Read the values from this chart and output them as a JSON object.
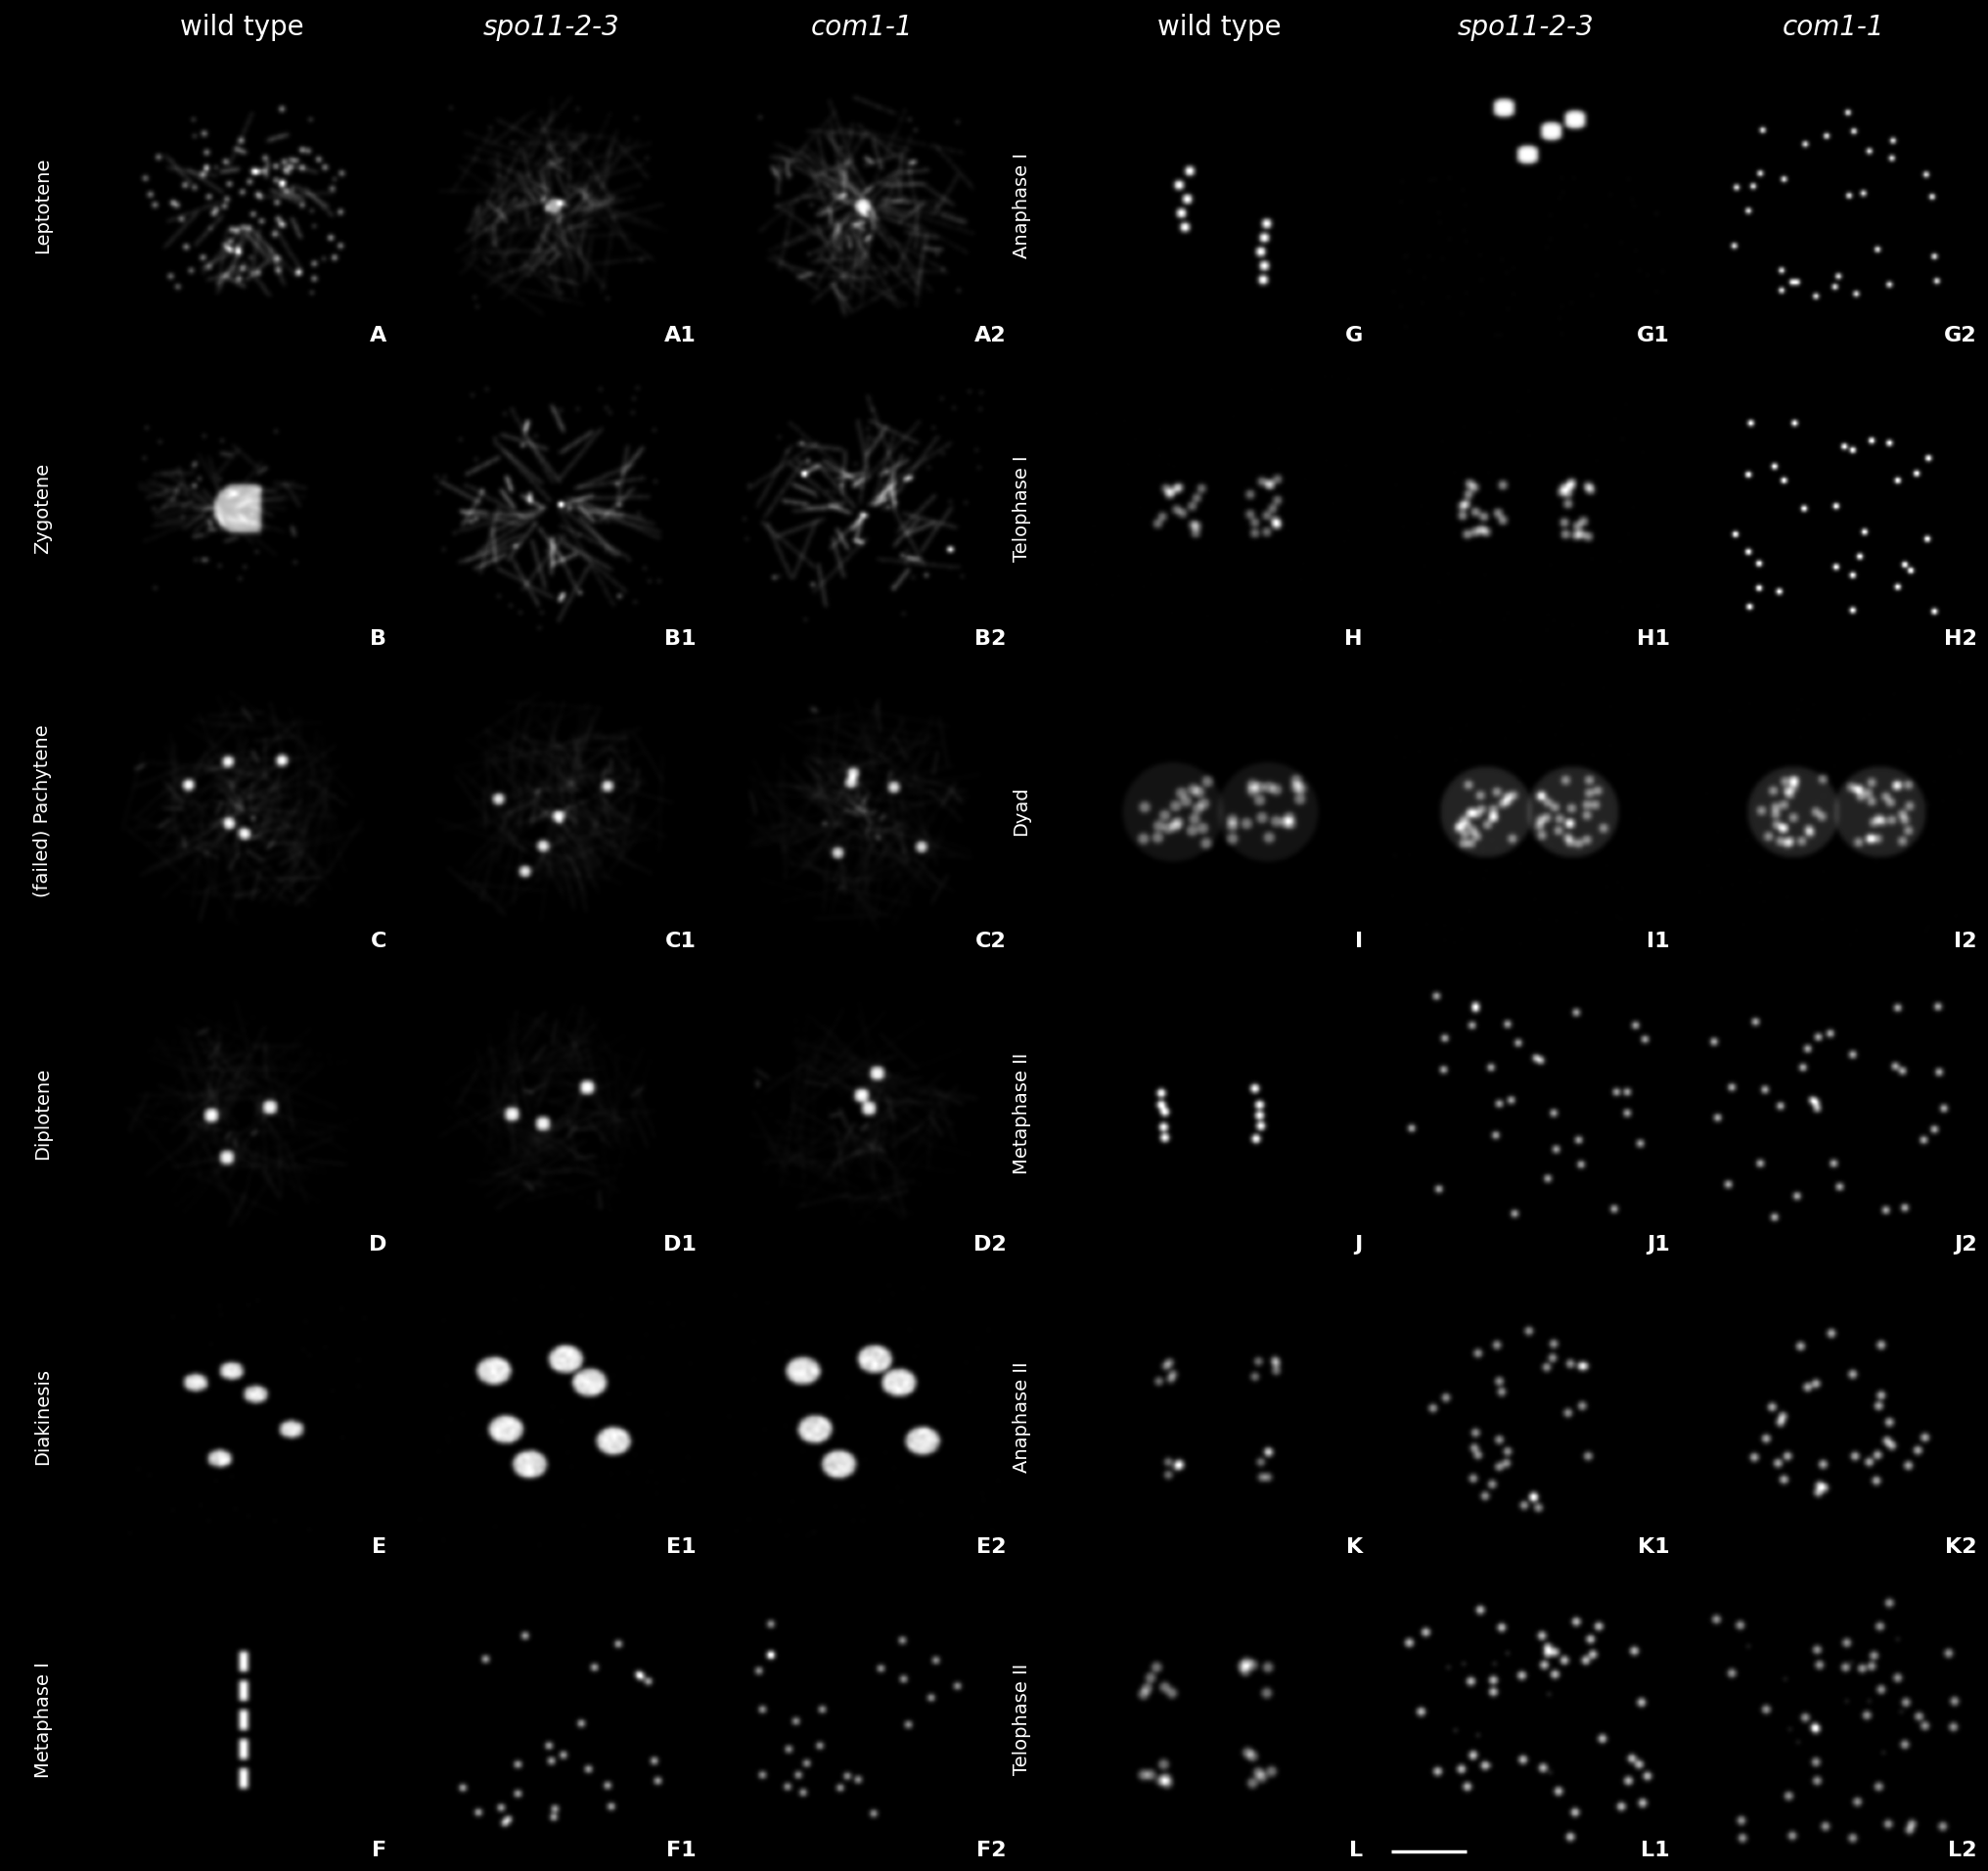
{
  "background": "#000000",
  "text_color": "#ffffff",
  "border_color": "#ffffff",
  "fig_width": 20.32,
  "fig_height": 19.12,
  "left_panel": {
    "col_labels": [
      "wild type",
      "spo11-2-3",
      "com1-1"
    ],
    "col_labels_italic": [
      false,
      true,
      true
    ],
    "row_labels": [
      "Leptotene",
      "Zygotene",
      "(failed) Pachytene",
      "Diplotene",
      "Diakinesis",
      "Metaphase I"
    ],
    "cell_labels": [
      [
        "A",
        "A1",
        "A2"
      ],
      [
        "B",
        "B1",
        "B2"
      ],
      [
        "C",
        "C1",
        "C2"
      ],
      [
        "D",
        "D1",
        "D2"
      ],
      [
        "E",
        "E1",
        "E2"
      ],
      [
        "F",
        "F1",
        "F2"
      ]
    ]
  },
  "right_panel": {
    "col_labels": [
      "wild type",
      "spo11-2-3",
      "com1-1"
    ],
    "col_labels_italic": [
      false,
      true,
      true
    ],
    "row_labels": [
      "Anaphase I",
      "Telophase I",
      "Dyad",
      "Metaphase II",
      "Anaphase II",
      "Telophase II"
    ],
    "cell_labels": [
      [
        "G",
        "G1",
        "G2"
      ],
      [
        "H",
        "H1",
        "H2"
      ],
      [
        "I",
        "I1",
        "I2"
      ],
      [
        "J",
        "J1",
        "J2"
      ],
      [
        "K",
        "K1",
        "K2"
      ],
      [
        "L",
        "L1",
        "L2"
      ]
    ]
  },
  "cell_label_fontsize": 16,
  "col_label_fontsize": 20,
  "row_label_fontsize": 14
}
